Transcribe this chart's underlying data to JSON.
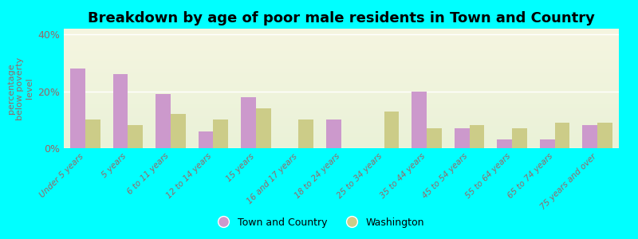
{
  "title": "Breakdown by age of poor male residents in Town and Country",
  "ylabel": "percentage\nbelow poverty\nlevel",
  "categories": [
    "Under 5 years",
    "5 years",
    "6 to 11 years",
    "12 to 14 years",
    "15 years",
    "16 and 17 years",
    "18 to 24 years",
    "25 to 34 years",
    "35 to 44 years",
    "45 to 54 years",
    "55 to 64 years",
    "65 to 74 years",
    "75 years and over"
  ],
  "town_values": [
    28,
    26,
    19,
    6,
    18,
    0,
    10,
    0,
    20,
    7,
    3,
    3,
    8
  ],
  "washington_values": [
    10,
    8,
    12,
    10,
    14,
    10,
    0,
    13,
    7,
    8,
    7,
    9,
    9
  ],
  "town_color": "#cc99cc",
  "washington_color": "#cccc88",
  "background_color": "#00ffff",
  "ylim": [
    0,
    42
  ],
  "yticks": [
    0,
    20,
    40
  ],
  "ytick_labels": [
    "0%",
    "20%",
    "40%"
  ],
  "bar_width": 0.35,
  "title_fontsize": 13,
  "legend_town": "Town and Country",
  "legend_washington": "Washington",
  "tick_color": "#996666",
  "axis_label_color": "#996666"
}
